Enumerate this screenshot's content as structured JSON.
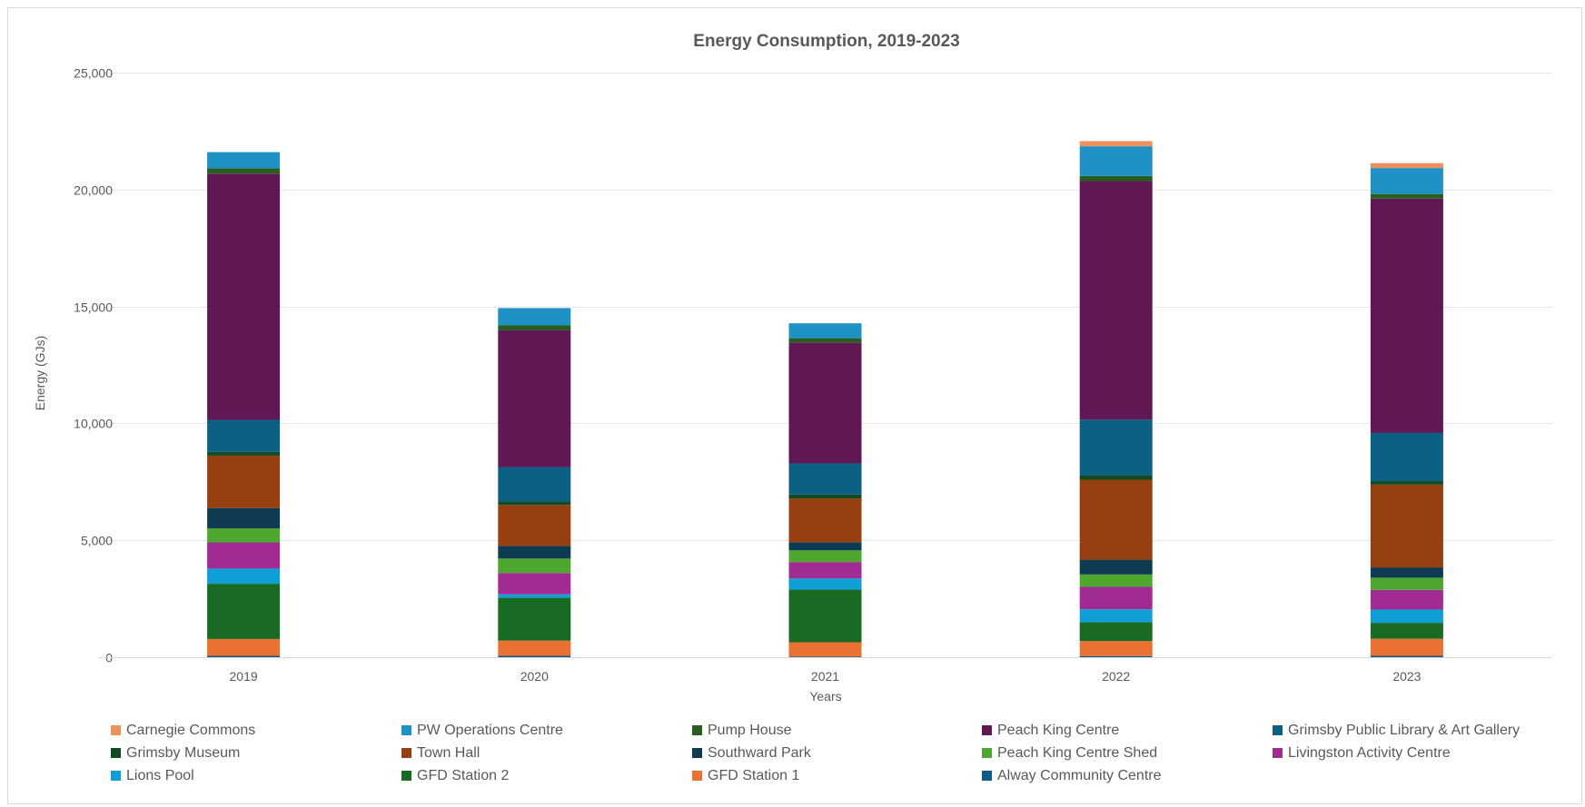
{
  "chart_data": {
    "type": "bar",
    "stacked": true,
    "title": "Energy Consumption, 2019-2023",
    "xlabel": "Years",
    "ylabel": "Energy (GJs)",
    "ylim": [
      0,
      25000
    ],
    "yticks": [
      "0",
      "5,000",
      "10,000",
      "15,000",
      "20,000",
      "25,000"
    ],
    "ytick_values": [
      0,
      5000,
      10000,
      15000,
      20000,
      25000
    ],
    "grid": true,
    "legend_position": "bottom",
    "categories": [
      "2019",
      "2020",
      "2021",
      "2022",
      "2023"
    ],
    "series": [
      {
        "name": "Alway Community Centre",
        "color": "#0E5A8A",
        "values": [
          60,
          60,
          30,
          50,
          60
        ]
      },
      {
        "name": "GFD Station 1",
        "color": "#E97132",
        "values": [
          720,
          650,
          610,
          640,
          730
        ]
      },
      {
        "name": "GFD Station 2",
        "color": "#196B24",
        "values": [
          2360,
          1830,
          2250,
          810,
          680
        ]
      },
      {
        "name": "Lions Pool",
        "color": "#0F9ED5",
        "values": [
          650,
          150,
          480,
          550,
          570
        ]
      },
      {
        "name": "Livingston Activity Centre",
        "color": "#A02B93",
        "values": [
          1120,
          910,
          700,
          960,
          840
        ]
      },
      {
        "name": "Peach King Centre Shed",
        "color": "#4EA72E",
        "values": [
          600,
          620,
          500,
          530,
          520
        ]
      },
      {
        "name": "Southward Park",
        "color": "#0E3A52",
        "values": [
          870,
          540,
          350,
          630,
          440
        ]
      },
      {
        "name": "Town Hall",
        "color": "#964011",
        "values": [
          2240,
          1750,
          1870,
          3420,
          3540
        ]
      },
      {
        "name": "Grimsby Museum",
        "color": "#124A24",
        "values": [
          160,
          150,
          170,
          190,
          150
        ]
      },
      {
        "name": "Grimsby Public Library & Art Gallery",
        "color": "#0B6084",
        "values": [
          1370,
          1470,
          1330,
          2380,
          2060
        ]
      },
      {
        "name": "Peach King Centre",
        "color": "#5F1854",
        "values": [
          10530,
          5860,
          5170,
          10200,
          10020
        ]
      },
      {
        "name": "Pump House",
        "color": "#275E1F",
        "values": [
          230,
          200,
          180,
          220,
          200
        ]
      },
      {
        "name": "PW Operations Centre",
        "color": "#1F91C4",
        "values": [
          690,
          740,
          640,
          1270,
          1110
        ]
      },
      {
        "name": "Carnegie Commons",
        "color": "#EC915E",
        "values": [
          0,
          0,
          0,
          220,
          210
        ]
      }
    ]
  },
  "legend": {
    "items": [
      {
        "label": "Carnegie Commons",
        "color": "#EC915E"
      },
      {
        "label": "PW Operations Centre",
        "color": "#1F91C4"
      },
      {
        "label": "Pump House",
        "color": "#275E1F"
      },
      {
        "label": "Peach King Centre",
        "color": "#5F1854"
      },
      {
        "label": "Grimsby Public Library & Art Gallery",
        "color": "#0B6084"
      },
      {
        "label": "Grimsby Museum",
        "color": "#124A24"
      },
      {
        "label": "Town Hall",
        "color": "#964011"
      },
      {
        "label": "Southward Park",
        "color": "#0E3A52"
      },
      {
        "label": "Peach King Centre Shed",
        "color": "#4EA72E"
      },
      {
        "label": "Livingston Activity Centre",
        "color": "#A02B93"
      },
      {
        "label": "Lions Pool",
        "color": "#0F9ED5"
      },
      {
        "label": "GFD Station 2",
        "color": "#196B24"
      },
      {
        "label": "GFD Station 1",
        "color": "#E97132"
      },
      {
        "label": "Alway Community Centre",
        "color": "#0E5A8A"
      }
    ]
  }
}
